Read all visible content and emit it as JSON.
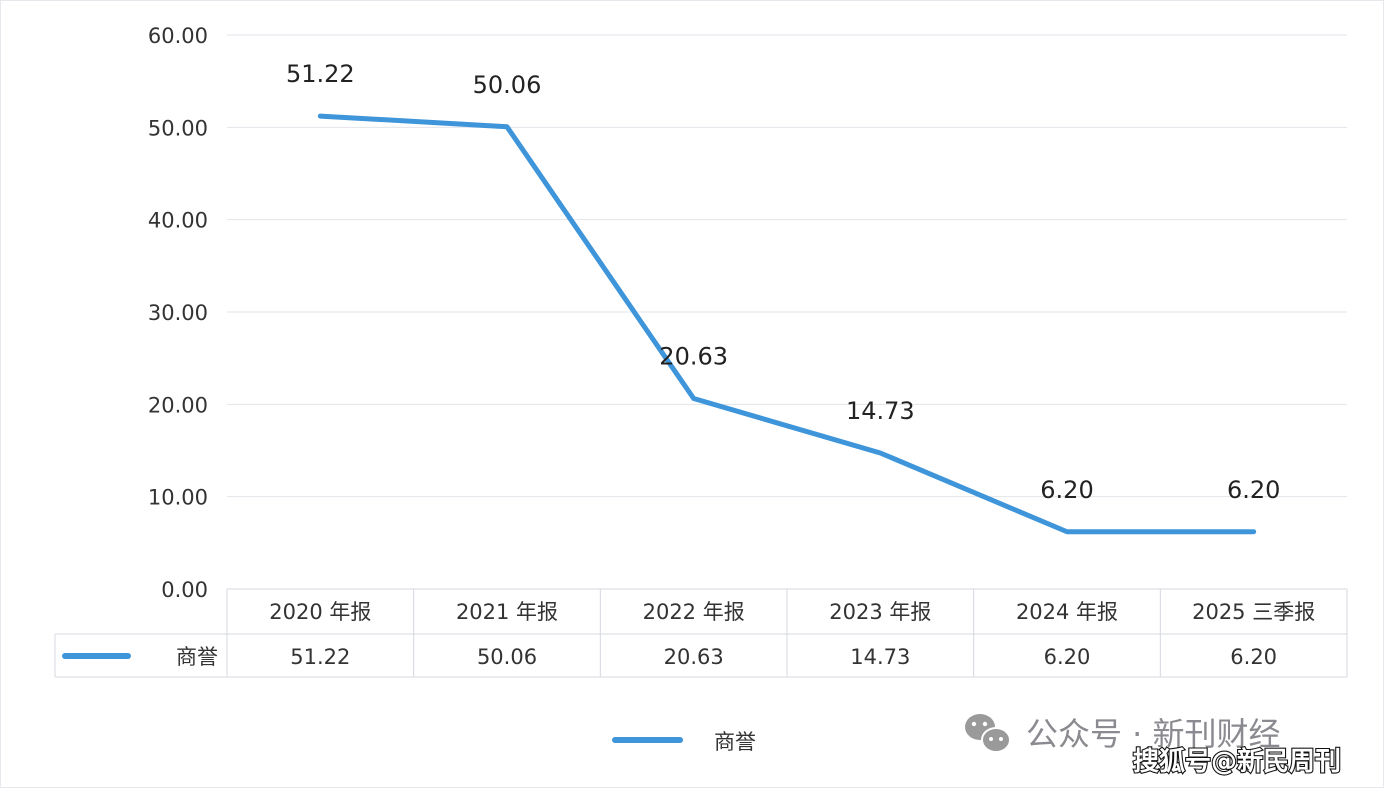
{
  "chart_data": {
    "type": "line",
    "categories": [
      "2020 年报",
      "2021 年报",
      "2022 年报",
      "2023 年报",
      "2024 年报",
      "2025 三季报"
    ],
    "series": [
      {
        "name": "商誉",
        "values": [
          51.22,
          50.06,
          20.63,
          14.73,
          6.2,
          6.2
        ],
        "labels": [
          "51.22",
          "50.06",
          "20.63",
          "14.73",
          "6.20",
          "6.20"
        ]
      }
    ],
    "yticks": [
      "0.00",
      "10.00",
      "20.00",
      "30.00",
      "40.00",
      "50.00",
      "60.00"
    ],
    "ylim": [
      0,
      60
    ],
    "grid": true,
    "data_table": true,
    "legend": "bottom",
    "line_color": "#3e95da"
  },
  "watermark": {
    "wechat_text": "公众号 · 新刊财经",
    "sohu_text": "搜狐号@新民周刊",
    "icon": "wechat-icon"
  }
}
